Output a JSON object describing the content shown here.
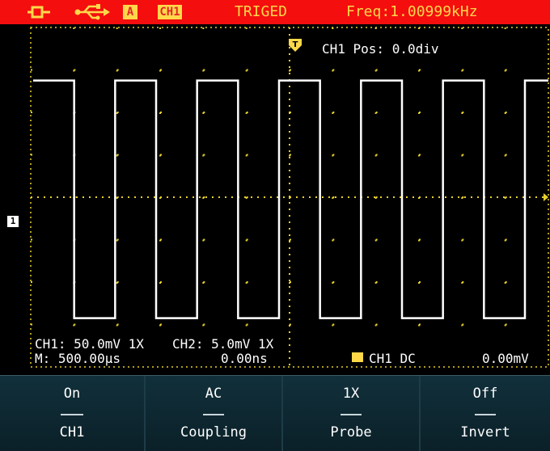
{
  "status_bar": {
    "mode_icon": "plug-icon",
    "usb_icon": "usb-icon",
    "acquire_badge": "A",
    "channel_badge": "CH1",
    "trigger_status": "TRIGED",
    "frequency": "Freq:1.00999kHz"
  },
  "overlay": {
    "position": "CH1 Pos: 0.0div",
    "ch1_marker": "1",
    "ch1_scale": "CH1: 50.0mV 1X",
    "ch2_scale": "CH2: 5.0mV 1X",
    "timebase": "M: 500.00μs",
    "time_offset": "0.00ns",
    "trigger_info": "CH1 DC",
    "trigger_level": "0.00mV"
  },
  "waveform": {
    "type": "square",
    "channel": "CH1",
    "high_div": 2.75,
    "low_div": -2.85,
    "period_div": 1.9
  },
  "menu": {
    "buttons": [
      {
        "value": "On",
        "label": "CH1"
      },
      {
        "value": "AC",
        "label": "Coupling"
      },
      {
        "value": "1X",
        "label": "Probe"
      },
      {
        "value": "Off",
        "label": "Invert"
      }
    ]
  },
  "colors": {
    "status_bar_bg": "#f40e0e",
    "status_text": "#ffd84a",
    "grid": "#e8d02a",
    "trace": "#ffffff",
    "menu_bg": "#0e2630"
  }
}
